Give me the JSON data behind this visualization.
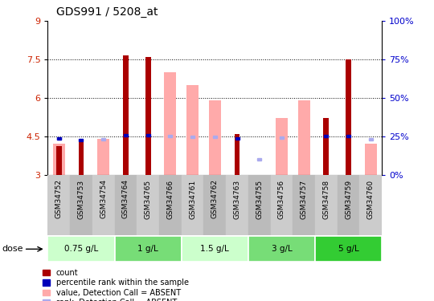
{
  "title": "GDS991 / 5208_at",
  "samples": [
    "GSM34752",
    "GSM34753",
    "GSM34754",
    "GSM34764",
    "GSM34765",
    "GSM34766",
    "GSM34761",
    "GSM34762",
    "GSM34763",
    "GSM34755",
    "GSM34756",
    "GSM34757",
    "GSM34758",
    "GSM34759",
    "GSM34760"
  ],
  "red_bar_top": [
    4.1,
    4.35,
    3.0,
    7.65,
    7.6,
    3.0,
    3.0,
    3.0,
    4.6,
    3.0,
    3.0,
    3.0,
    5.2,
    7.5,
    3.0
  ],
  "red_bar_bottom": [
    3.0,
    3.0,
    3.0,
    3.0,
    3.0,
    3.0,
    3.0,
    3.0,
    3.0,
    3.0,
    3.0,
    3.0,
    3.0,
    3.0,
    3.0
  ],
  "pink_bar_top": [
    4.2,
    3.0,
    4.4,
    3.0,
    3.0,
    7.0,
    6.5,
    5.9,
    3.0,
    3.0,
    5.2,
    5.9,
    3.0,
    3.0,
    4.2
  ],
  "pink_bar_bottom": [
    3.0,
    3.0,
    3.0,
    3.0,
    3.0,
    3.0,
    3.0,
    3.0,
    3.0,
    3.0,
    3.0,
    3.0,
    3.0,
    3.0,
    3.0
  ],
  "blue_square_y": [
    4.4,
    4.35,
    null,
    4.55,
    4.55,
    null,
    null,
    null,
    4.4,
    null,
    null,
    null,
    4.5,
    4.5,
    null
  ],
  "light_blue_square_y": [
    4.4,
    null,
    4.37,
    null,
    null,
    4.5,
    4.47,
    4.47,
    null,
    3.6,
    4.45,
    null,
    null,
    null,
    4.37
  ],
  "dose_groups": [
    {
      "label": "0.75 g/L",
      "start": 0,
      "end": 3,
      "color": "#ccffcc"
    },
    {
      "label": "1 g/L",
      "start": 3,
      "end": 6,
      "color": "#77dd77"
    },
    {
      "label": "1.5 g/L",
      "start": 6,
      "end": 9,
      "color": "#ccffcc"
    },
    {
      "label": "3 g/L",
      "start": 9,
      "end": 12,
      "color": "#77dd77"
    },
    {
      "label": "5 g/L",
      "start": 12,
      "end": 15,
      "color": "#33cc33"
    }
  ],
  "ylim": [
    3.0,
    9.0
  ],
  "y_left_ticks": [
    3,
    4.5,
    6,
    7.5,
    9
  ],
  "y_left_labels": [
    "3",
    "4.5",
    "6",
    "7.5",
    "9"
  ],
  "y_right_ticks": [
    0,
    25,
    50,
    75,
    100
  ],
  "dotted_lines": [
    4.5,
    6.0,
    7.5
  ],
  "red_color": "#aa0000",
  "pink_color": "#ffaaaa",
  "blue_color": "#0000bb",
  "light_blue_color": "#aaaaee",
  "sample_bg_color": "#cccccc",
  "plot_bg_color": "#ffffff"
}
